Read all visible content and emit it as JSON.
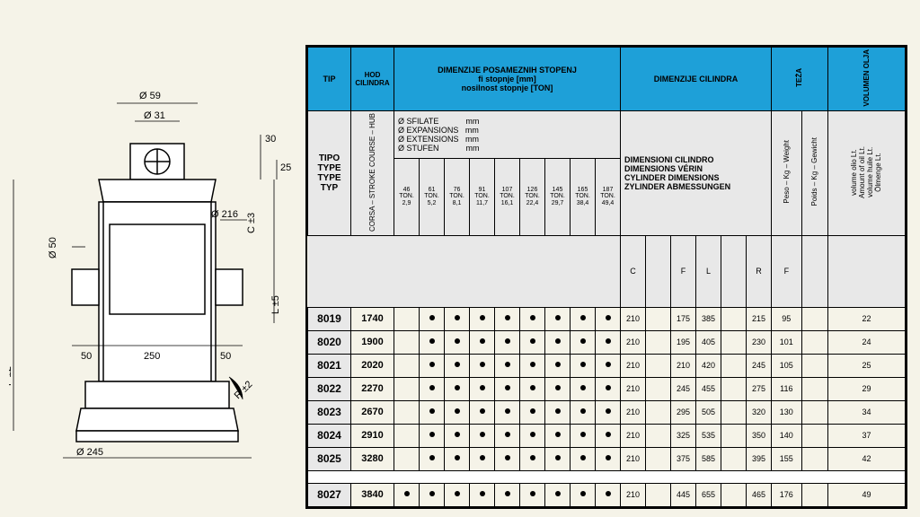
{
  "colors": {
    "header_bg": "#1ea0d8",
    "grid": "#000000",
    "page_bg": "#f5f3e8"
  },
  "drawing": {
    "dims": {
      "d59": "59",
      "d31": "31",
      "top30": "30",
      "top25": "25",
      "d216": "216",
      "c_tol": "±3",
      "d50": "50",
      "L_tol": "±5",
      "w50a": "50",
      "w250": "250",
      "w50b": "50",
      "F_tol": "±2",
      "R_tol": "±2",
      "d245": "245"
    }
  },
  "headers": {
    "tip": "TIP",
    "hod": "HOD CILINDRA",
    "dim_pos": "DIMENZIJE POSAMEZNIH STOPENJ\nfi stopnje [mm]\nnosilnost stopnje [TON]",
    "dim_cil": "DIMENZIJE CILINDRA",
    "teza": "TEŽA",
    "volumen": "VOLUMEN OLJA",
    "tipo_block": "TIPO\nTYPE\nTYPE\nTYP",
    "corsa": "CORSA – STROKE COURSE – HUB",
    "ext_block": "Ø SFILATE            mm\nØ EXPANSIONS   mm\nØ EXTENSIONS   mm\nØ STUFEN            mm",
    "cyl_block": "DIMENSIONI CILINDRO\nDIMENSIONS VÉRIN\nCYLINDER DIMENSIONS\nZYLINDER ABMESSUNGEN",
    "peso": "Peso – Kg – Weight",
    "poids": "Poids – Kg – Gewicht",
    "vol_block": "volume olio Lt.\nAmount of oil Lt.\nvolume huile Lt.\nÖlmenge Lt.",
    "C": "C",
    "F": "F",
    "L": "L",
    "R": "R",
    "Fsub": "F"
  },
  "ton_cols": [
    {
      "d": "46",
      "t": "TON.",
      "v": "2,9"
    },
    {
      "d": "61",
      "t": "TON.",
      "v": "5,2"
    },
    {
      "d": "76",
      "t": "TON.",
      "v": "8,1"
    },
    {
      "d": "91",
      "t": "TON.",
      "v": "11,7"
    },
    {
      "d": "107",
      "t": "TON.",
      "v": "16,1"
    },
    {
      "d": "126",
      "t": "TON.",
      "v": "22,4"
    },
    {
      "d": "145",
      "t": "TON.",
      "v": "29,7"
    },
    {
      "d": "165",
      "t": "TON.",
      "v": "38,4"
    },
    {
      "d": "187",
      "t": "TON.",
      "v": "49,4"
    }
  ],
  "rows": [
    {
      "tip": "8019",
      "hod": "1740",
      "dots": [
        0,
        1,
        1,
        1,
        1,
        1,
        1,
        1,
        1
      ],
      "C": "210",
      "F": "175",
      "L": "385",
      "R": "215",
      "peso": "95",
      "vol": "22"
    },
    {
      "tip": "8020",
      "hod": "1900",
      "dots": [
        0,
        1,
        1,
        1,
        1,
        1,
        1,
        1,
        1
      ],
      "C": "210",
      "F": "195",
      "L": "405",
      "R": "230",
      "peso": "101",
      "vol": "24"
    },
    {
      "tip": "8021",
      "hod": "2020",
      "dots": [
        0,
        1,
        1,
        1,
        1,
        1,
        1,
        1,
        1
      ],
      "C": "210",
      "F": "210",
      "L": "420",
      "R": "245",
      "peso": "105",
      "vol": "25"
    },
    {
      "tip": "8022",
      "hod": "2270",
      "dots": [
        0,
        1,
        1,
        1,
        1,
        1,
        1,
        1,
        1
      ],
      "C": "210",
      "F": "245",
      "L": "455",
      "R": "275",
      "peso": "116",
      "vol": "29"
    },
    {
      "tip": "8023",
      "hod": "2670",
      "dots": [
        0,
        1,
        1,
        1,
        1,
        1,
        1,
        1,
        1
      ],
      "C": "210",
      "F": "295",
      "L": "505",
      "R": "320",
      "peso": "130",
      "vol": "34"
    },
    {
      "tip": "8024",
      "hod": "2910",
      "dots": [
        0,
        1,
        1,
        1,
        1,
        1,
        1,
        1,
        1
      ],
      "C": "210",
      "F": "325",
      "L": "535",
      "R": "350",
      "peso": "140",
      "vol": "37"
    },
    {
      "tip": "8025",
      "hod": "3280",
      "dots": [
        0,
        1,
        1,
        1,
        1,
        1,
        1,
        1,
        1
      ],
      "C": "210",
      "F": "375",
      "L": "585",
      "R": "395",
      "peso": "155",
      "vol": "42"
    }
  ],
  "rows2": [
    {
      "tip": "8027",
      "hod": "3840",
      "dots": [
        1,
        1,
        1,
        1,
        1,
        1,
        1,
        1,
        1
      ],
      "C": "210",
      "F": "445",
      "L": "655",
      "R": "465",
      "peso": "176",
      "vol": "49"
    }
  ]
}
